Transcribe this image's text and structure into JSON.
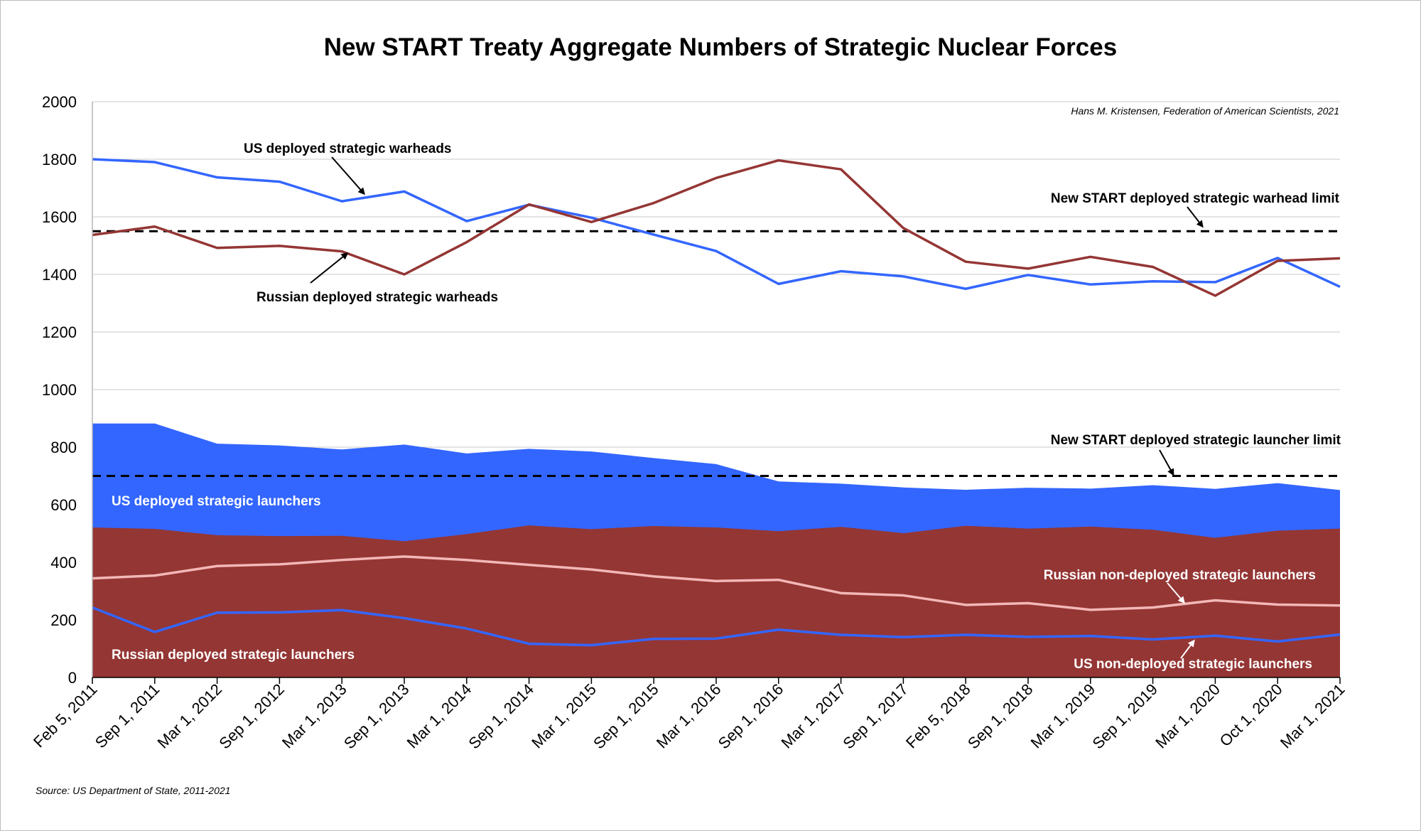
{
  "chart_data": {
    "type": "line",
    "title": "New START Treaty Aggregate Numbers of Strategic Nuclear Forces",
    "credit": "Hans M. Kristensen, Federation of American Scientists, 2021",
    "source": "Source: US Department of State, 2011-2021",
    "ylim": [
      0,
      2000
    ],
    "yticks": [
      0,
      200,
      400,
      600,
      800,
      1000,
      1200,
      1400,
      1600,
      1800,
      2000
    ],
    "grid": true,
    "categories": [
      "Feb 5, 2011",
      "Sep 1, 2011",
      "Mar 1, 2012",
      "Sep 1, 2012",
      "Mar 1, 2013",
      "Sep 1, 2013",
      "Mar 1, 2014",
      "Sep 1, 2014",
      "Mar 1, 2015",
      "Sep 1, 2015",
      "Mar 1, 2016",
      "Sep 1, 2016",
      "Mar 1, 2017",
      "Sep 1, 2017",
      "Feb 5, 2018",
      "Sep 1, 2018",
      "Mar 1, 2019",
      "Sep 1, 2019",
      "Mar 1, 2020",
      "Oct 1, 2020",
      "Mar 1, 2021"
    ],
    "areas": [
      {
        "name": "US deployed strategic launchers",
        "color": "#3366ff",
        "values": [
          882,
          882,
          812,
          806,
          792,
          809,
          778,
          794,
          785,
          762,
          741,
          681,
          673,
          660,
          652,
          659,
          656,
          668,
          655,
          675,
          651
        ]
      },
      {
        "name": "Russian deployed strategic launchers",
        "color": "#943634",
        "values": [
          521,
          516,
          494,
          491,
          492,
          473,
          498,
          528,
          515,
          526,
          521,
          508,
          523,
          501,
          527,
          517,
          524,
          513,
          485,
          510,
          517
        ]
      }
    ],
    "series": [
      {
        "name": "US deployed strategic warheads",
        "color": "#3366ff",
        "values": [
          1800,
          1790,
          1737,
          1722,
          1654,
          1688,
          1585,
          1642,
          1597,
          1538,
          1481,
          1367,
          1411,
          1393,
          1350,
          1398,
          1365,
          1376,
          1373,
          1457,
          1357
        ]
      },
      {
        "name": "Russian deployed strategic warheads",
        "color": "#943634",
        "values": [
          1537,
          1566,
          1492,
          1499,
          1480,
          1400,
          1512,
          1643,
          1582,
          1648,
          1735,
          1796,
          1765,
          1561,
          1444,
          1420,
          1461,
          1426,
          1326,
          1447,
          1456
        ]
      },
      {
        "name": "Russian non-deployed strategic launchers",
        "color": "#f2b8b7",
        "values": [
          344,
          354,
          387,
          393,
          408,
          420,
          408,
          391,
          375,
          351,
          335,
          339,
          293,
          285,
          252,
          258,
          235,
          243,
          268,
          253,
          250
        ]
      },
      {
        "name": "US non-deployed strategic launchers",
        "color": "#3366ff",
        "values": [
          243,
          158,
          225,
          226,
          234,
          206,
          170,
          117,
          112,
          134,
          135,
          166,
          148,
          140,
          148,
          141,
          144,
          132,
          145,
          125,
          149
        ]
      }
    ],
    "limits": [
      {
        "name": "New START deployed strategic warhead limit",
        "value": 1550
      },
      {
        "name": "New START deployed strategic launcher limit",
        "value": 700
      }
    ],
    "annotations": {
      "us_warheads": "US deployed strategic warheads",
      "ru_warheads": "Russian deployed strategic warheads",
      "warhead_limit": "New START deployed strategic warhead limit",
      "launcher_limit": "New START deployed strategic launcher limit",
      "us_launchers": "US deployed strategic launchers",
      "ru_launchers": "Russian deployed strategic launchers",
      "ru_nondeployed": "Russian non-deployed strategic launchers",
      "us_nondeployed": "US non-deployed strategic launchers"
    }
  }
}
